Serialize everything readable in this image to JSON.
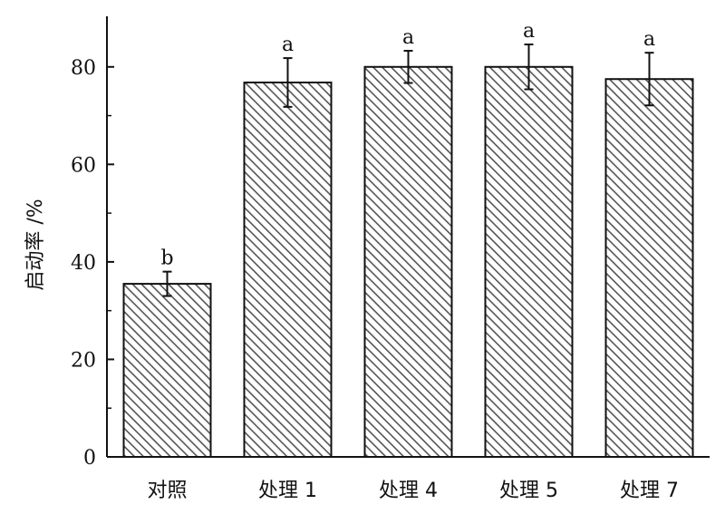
{
  "chart_data": {
    "type": "bar",
    "categories": [
      "对照",
      "处理 1",
      "处理 4",
      "处理 5",
      "处理 7"
    ],
    "values": [
      35.5,
      76.8,
      80.0,
      80.0,
      77.5
    ],
    "error": [
      2.5,
      5.0,
      3.3,
      4.6,
      5.4
    ],
    "significance": [
      "b",
      "a",
      "a",
      "a",
      "a"
    ],
    "title": "",
    "xlabel": "",
    "ylabel": "启动率 /%",
    "ylim": [
      0,
      90
    ],
    "yticks": [
      0,
      20,
      40,
      60,
      80
    ],
    "bar_fill": "diagonal-hatch",
    "colors": {
      "edge": "#111111",
      "hatch": "#555555",
      "background": "#ffffff"
    },
    "grid": false,
    "legend": "none"
  }
}
